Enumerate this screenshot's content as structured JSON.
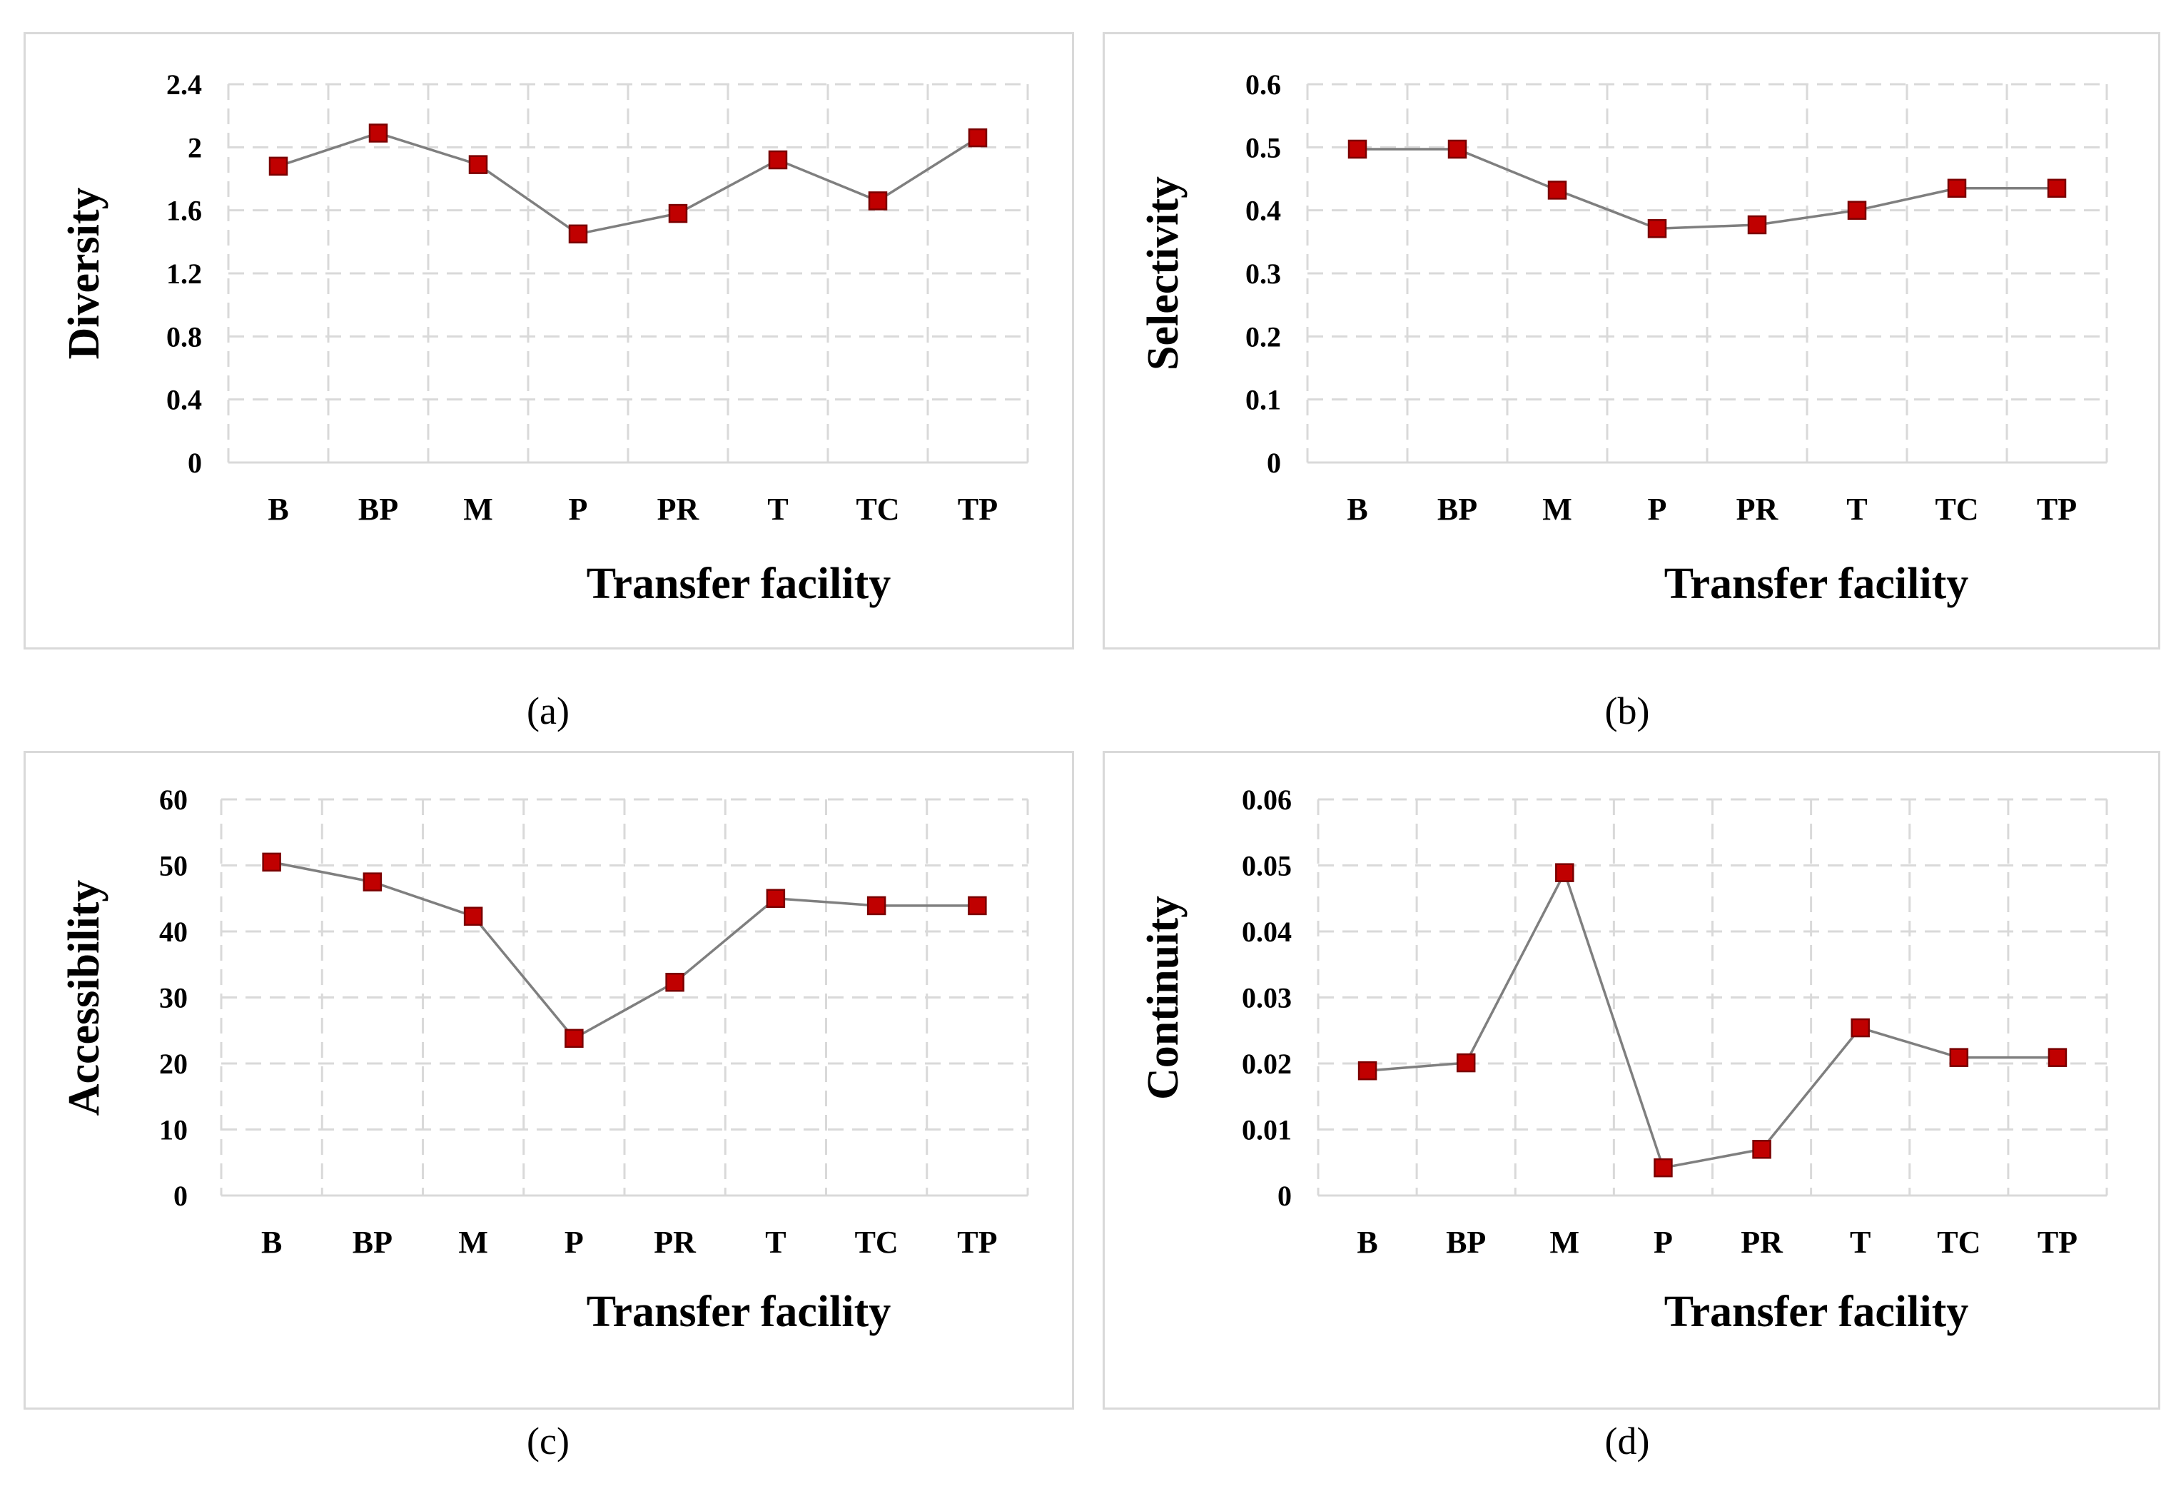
{
  "colors": {
    "line": "#7f7f7f",
    "marker_fill": "#c00000",
    "marker_stroke": "#7a0000",
    "grid": "#d9d9d9"
  },
  "chart_data": [
    {
      "id": "a",
      "type": "line",
      "caption": "(a)",
      "xlabel": "Transfer facility",
      "ylabel": "Diversity",
      "categories": [
        "B",
        "BP",
        "M",
        "P",
        "PR",
        "T",
        "TC",
        "TP"
      ],
      "values": [
        1.88,
        2.09,
        1.89,
        1.45,
        1.58,
        1.92,
        1.66,
        2.06
      ],
      "ylim": [
        0,
        2.4
      ],
      "yticks": [
        "0",
        "0.4",
        "0.8",
        "1.2",
        "1.6",
        "2",
        "2.4"
      ],
      "grid": true
    },
    {
      "id": "b",
      "type": "line",
      "caption": "(b)",
      "xlabel": "Transfer facility",
      "ylabel": "Selectivity",
      "categories": [
        "B",
        "BP",
        "M",
        "P",
        "PR",
        "T",
        "TC",
        "TP"
      ],
      "values": [
        0.497,
        0.497,
        0.432,
        0.371,
        0.377,
        0.4,
        0.435,
        0.435
      ],
      "ylim": [
        0,
        0.6
      ],
      "yticks": [
        "0",
        "0.1",
        "0.2",
        "0.3",
        "0.4",
        "0.5",
        "0.6"
      ],
      "grid": true
    },
    {
      "id": "c",
      "type": "line",
      "caption": "(c)",
      "xlabel": "Transfer facility",
      "ylabel": "Accessibility",
      "categories": [
        "B",
        "BP",
        "M",
        "P",
        "PR",
        "T",
        "TC",
        "TP"
      ],
      "values": [
        50.5,
        47.5,
        42.3,
        23.8,
        32.3,
        45.0,
        43.9,
        43.9
      ],
      "ylim": [
        0,
        60
      ],
      "yticks": [
        "0",
        "10",
        "20",
        "30",
        "40",
        "50",
        "60"
      ],
      "grid": true
    },
    {
      "id": "d",
      "type": "line",
      "caption": "(d)",
      "xlabel": "Transfer facility",
      "ylabel": "Continuity",
      "categories": [
        "B",
        "BP",
        "M",
        "P",
        "PR",
        "T",
        "TC",
        "TP"
      ],
      "values": [
        0.0189,
        0.0201,
        0.0489,
        0.0042,
        0.007,
        0.0254,
        0.0209,
        0.0209
      ],
      "ylim": [
        0,
        0.06
      ],
      "yticks": [
        "0",
        "0.01",
        "0.02",
        "0.03",
        "0.04",
        "0.05",
        "0.06"
      ],
      "grid": true
    }
  ]
}
